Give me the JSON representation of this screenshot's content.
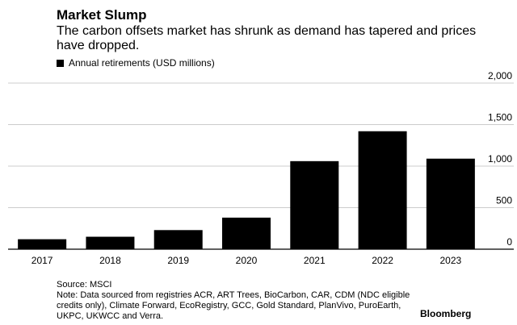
{
  "header": {
    "title": "Market Slump",
    "subtitle": "The carbon offsets market has shrunk as demand has tapered and prices have dropped."
  },
  "legend": {
    "label": "Annual retirements (USD millions)"
  },
  "chart_data": {
    "type": "bar",
    "categories": [
      "2017",
      "2018",
      "2019",
      "2020",
      "2021",
      "2022",
      "2023"
    ],
    "series": [
      {
        "name": "Annual retirements (USD millions)",
        "values": [
          120,
          150,
          230,
          380,
          1060,
          1420,
          1090
        ]
      }
    ],
    "ylim": [
      0,
      2000
    ],
    "yticks": [
      "2,000",
      "1,500",
      "1,000",
      "500",
      "0"
    ],
    "ytick_values": [
      2000,
      1500,
      1000,
      500,
      0
    ],
    "grid": true,
    "bar_color": "#000000",
    "grid_color": "#cccccc"
  },
  "footer": {
    "source": "Source: MSCI",
    "note": "Note: Data sourced from registries ACR, ART Trees, BioCarbon, CAR, CDM (NDC eligible credits only), Climate Forward, EcoRegistry, GCC, Gold Standard, PlanVivo, PuroEarth, UKPC, UKWCC and Verra.",
    "brand": "Bloomberg"
  }
}
